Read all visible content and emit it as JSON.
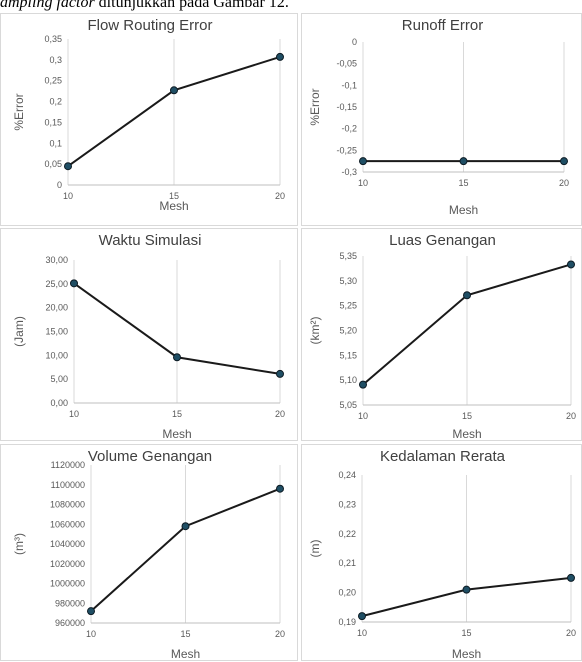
{
  "caption": {
    "italic": "ampling factor",
    "rest": " ditunjukkan pada Gambar 12."
  },
  "charts": [
    {
      "title": "Flow Routing Error",
      "ylabel": "%Error",
      "xlabel": "Mesh",
      "x_ticks": [
        "10",
        "15",
        "20"
      ],
      "y_ticks": [
        "0",
        "0,05",
        "0,1",
        "0,15",
        "0,2",
        "0,25",
        "0,3",
        "0,35"
      ],
      "chart_data": {
        "type": "line",
        "title": "Flow Routing Error",
        "xlabel": "Mesh",
        "ylabel": "%Error",
        "x": [
          10,
          15,
          20
        ],
        "y": [
          0.045,
          0.227,
          0.307
        ],
        "xlim": [
          10,
          20
        ],
        "ylim": [
          0,
          0.35
        ],
        "grid": "vertical"
      }
    },
    {
      "title": "Runoff Error",
      "ylabel": "%Error",
      "xlabel": "Mesh",
      "x_ticks": [
        "10",
        "15",
        "20"
      ],
      "y_ticks": [
        "-0,3",
        "-0,25",
        "-0,2",
        "-0,15",
        "-0,1",
        "-0,05",
        "0"
      ],
      "chart_data": {
        "type": "line",
        "title": "Runoff Error",
        "xlabel": "Mesh",
        "ylabel": "%Error",
        "x": [
          10,
          15,
          20
        ],
        "y": [
          -0.275,
          -0.275,
          -0.275
        ],
        "xlim": [
          10,
          20
        ],
        "ylim": [
          -0.3,
          0
        ],
        "grid": "vertical"
      }
    },
    {
      "title": "Waktu Simulasi",
      "ylabel": "(Jam)",
      "xlabel": "Mesh",
      "x_ticks": [
        "10",
        "15",
        "20"
      ],
      "y_ticks": [
        "0,00",
        "5,00",
        "10,00",
        "15,00",
        "20,00",
        "25,00",
        "30,00"
      ],
      "chart_data": {
        "type": "line",
        "title": "Waktu Simulasi",
        "xlabel": "Mesh",
        "ylabel": "(Jam)",
        "x": [
          10,
          15,
          20
        ],
        "y": [
          25.1,
          9.6,
          6.1
        ],
        "xlim": [
          10,
          20
        ],
        "ylim": [
          0,
          30
        ],
        "grid": "vertical"
      }
    },
    {
      "title": "Luas Genangan",
      "ylabel": "(km²)",
      "xlabel": "Mesh",
      "x_ticks": [
        "10",
        "15",
        "20"
      ],
      "y_ticks": [
        "5,05",
        "5,10",
        "5,15",
        "5,20",
        "5,25",
        "5,30",
        "5,35"
      ],
      "chart_data": {
        "type": "line",
        "title": "Luas Genangan",
        "xlabel": "Mesh",
        "ylabel": "(km²)",
        "x": [
          10,
          15,
          20
        ],
        "y": [
          5.091,
          5.271,
          5.333
        ],
        "xlim": [
          10,
          20
        ],
        "ylim": [
          5.05,
          5.35
        ],
        "grid": "vertical"
      }
    },
    {
      "title": "Volume Genangan",
      "ylabel": "(m³)",
      "xlabel": "Mesh",
      "x_ticks": [
        "10",
        "15",
        "20"
      ],
      "y_ticks": [
        "960000",
        "980000",
        "1000000",
        "1020000",
        "1040000",
        "1060000",
        "1080000",
        "1100000",
        "1120000"
      ],
      "chart_data": {
        "type": "line",
        "title": "Volume Genangan",
        "xlabel": "Mesh",
        "ylabel": "(m³)",
        "x": [
          10,
          15,
          20
        ],
        "y": [
          972000,
          1058000,
          1096000
        ],
        "xlim": [
          10,
          20
        ],
        "ylim": [
          960000,
          1120000
        ],
        "grid": "vertical"
      }
    },
    {
      "title": "Kedalaman Rerata",
      "ylabel": "(m)",
      "xlabel": "Mesh",
      "x_ticks": [
        "10",
        "15",
        "20"
      ],
      "y_ticks": [
        "0,19",
        "0,20",
        "0,21",
        "0,22",
        "0,23",
        "0,24"
      ],
      "chart_data": {
        "type": "line",
        "title": "Kedalaman Rerata",
        "xlabel": "Mesh",
        "ylabel": "(m)",
        "x": [
          10,
          15,
          20
        ],
        "y": [
          0.192,
          0.201,
          0.205
        ],
        "xlim": [
          10,
          20
        ],
        "ylim": [
          0.19,
          0.24
        ],
        "grid": "vertical"
      }
    }
  ]
}
